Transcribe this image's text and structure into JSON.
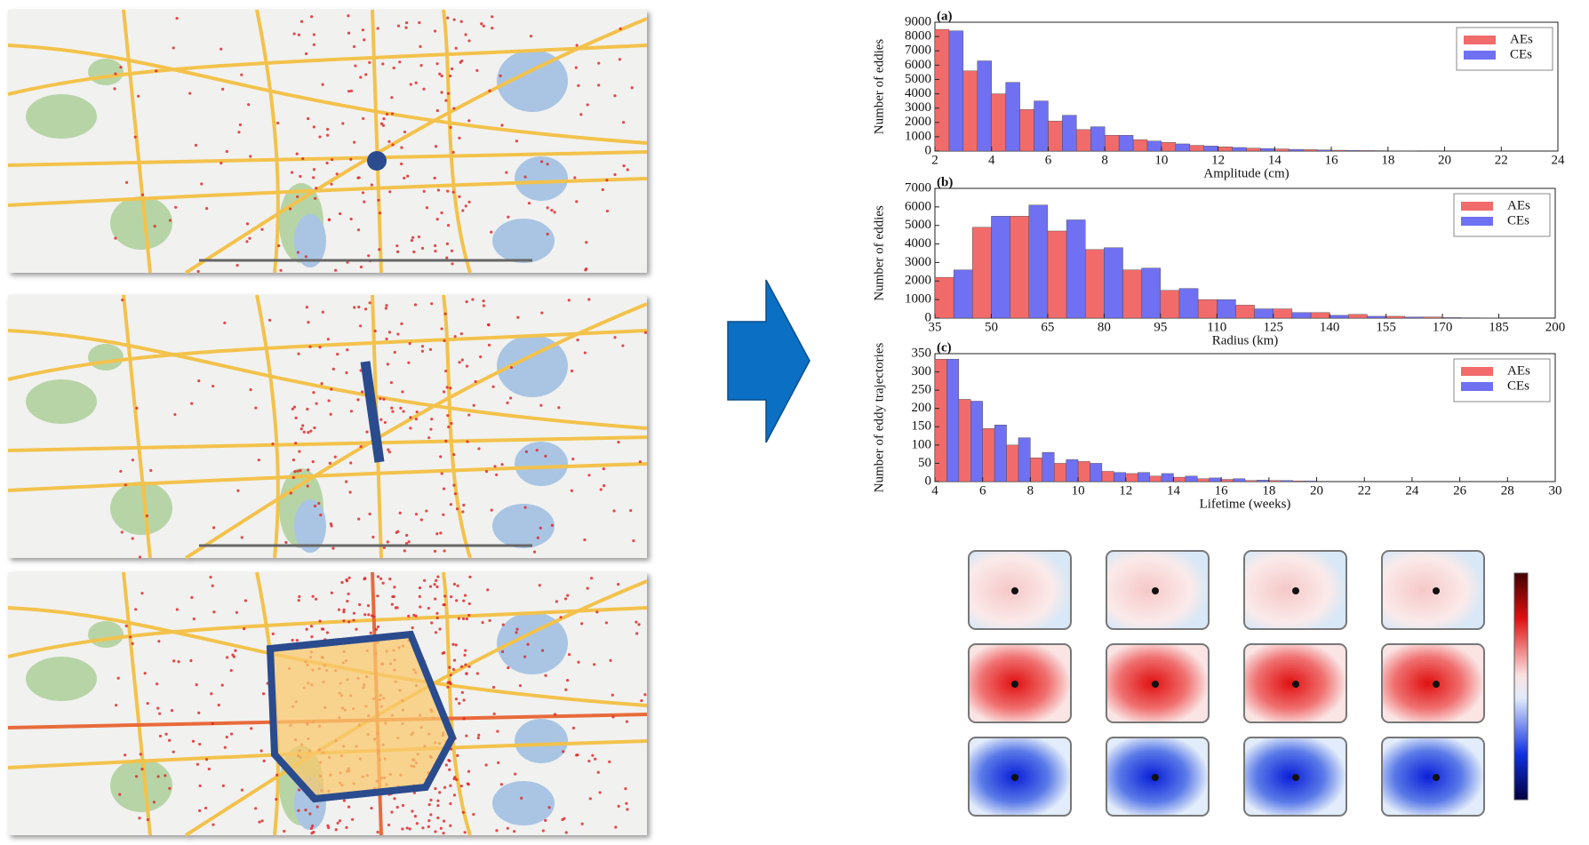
{
  "chart_data": [
    {
      "type": "histogram",
      "panel": "(a)",
      "xlabel": "Amplitude (cm)",
      "ylabel": "Number of eddies",
      "bins": [
        2,
        3,
        4,
        5,
        6,
        7,
        8,
        9,
        10,
        11,
        12,
        13,
        14,
        15,
        16,
        17,
        18,
        19
      ],
      "series": [
        {
          "name": "AEs",
          "color": "#f26b6b",
          "values": [
            8500,
            5600,
            4000,
            2900,
            2100,
            1500,
            1100,
            800,
            600,
            400,
            300,
            200,
            150,
            100,
            60,
            40,
            20
          ]
        },
        {
          "name": "CEs",
          "color": "#7070f2",
          "values": [
            8400,
            6300,
            4800,
            3500,
            2500,
            1700,
            1100,
            700,
            500,
            350,
            250,
            180,
            120,
            80,
            50,
            30,
            20
          ]
        }
      ],
      "xlim": [
        2,
        24
      ],
      "xticks": [
        2,
        4,
        6,
        8,
        10,
        12,
        14,
        16,
        18,
        20,
        22,
        24
      ],
      "ylim": [
        0,
        9000
      ],
      "yticks": [
        0,
        1000,
        2000,
        3000,
        4000,
        5000,
        6000,
        7000,
        8000,
        9000
      ],
      "legend": "upper right"
    },
    {
      "type": "histogram",
      "panel": "(b)",
      "xlabel": "Radius (km)",
      "ylabel": "Number of eddies",
      "bins": [
        35,
        45,
        55,
        65,
        75,
        85,
        95,
        105,
        115,
        125,
        135,
        145,
        155,
        165,
        175,
        185
      ],
      "series": [
        {
          "name": "AEs",
          "color": "#f26b6b",
          "values": [
            2200,
            4900,
            5500,
            4700,
            3700,
            2600,
            1500,
            1000,
            700,
            500,
            300,
            200,
            100,
            60,
            20
          ]
        },
        {
          "name": "CEs",
          "color": "#7070f2",
          "values": [
            2600,
            5500,
            6100,
            5300,
            3800,
            2700,
            1600,
            1000,
            500,
            300,
            150,
            100,
            60,
            30,
            10
          ]
        }
      ],
      "xlim": [
        35,
        200
      ],
      "xticks": [
        35,
        50,
        65,
        80,
        95,
        110,
        125,
        140,
        155,
        170,
        185,
        200
      ],
      "ylim": [
        0,
        7000
      ],
      "yticks": [
        0,
        1000,
        2000,
        3000,
        4000,
        5000,
        6000,
        7000
      ],
      "legend": "upper right"
    },
    {
      "type": "histogram",
      "panel": "(c)",
      "xlabel": "Lifetime (weeks)",
      "ylabel": "Number of eddy trajectories",
      "bins": [
        4,
        5,
        6,
        7,
        8,
        9,
        10,
        11,
        12,
        13,
        14,
        15,
        16,
        17,
        18,
        19,
        20
      ],
      "series": [
        {
          "name": "AEs",
          "color": "#f26b6b",
          "values": [
            335,
            225,
            145,
            100,
            65,
            50,
            55,
            28,
            22,
            15,
            12,
            8,
            6,
            3,
            3,
            2
          ]
        },
        {
          "name": "CEs",
          "color": "#7070f2",
          "values": [
            335,
            220,
            155,
            120,
            80,
            60,
            50,
            25,
            25,
            22,
            15,
            10,
            8,
            4,
            3,
            2
          ]
        }
      ],
      "xlim": [
        4,
        30
      ],
      "xticks": [
        4,
        6,
        8,
        10,
        12,
        14,
        16,
        18,
        20,
        22,
        24,
        26,
        28,
        30
      ],
      "ylim": [
        0,
        350
      ],
      "yticks": [
        0,
        50,
        100,
        150,
        200,
        250,
        300,
        350
      ],
      "legend": "upper right"
    }
  ]
}
